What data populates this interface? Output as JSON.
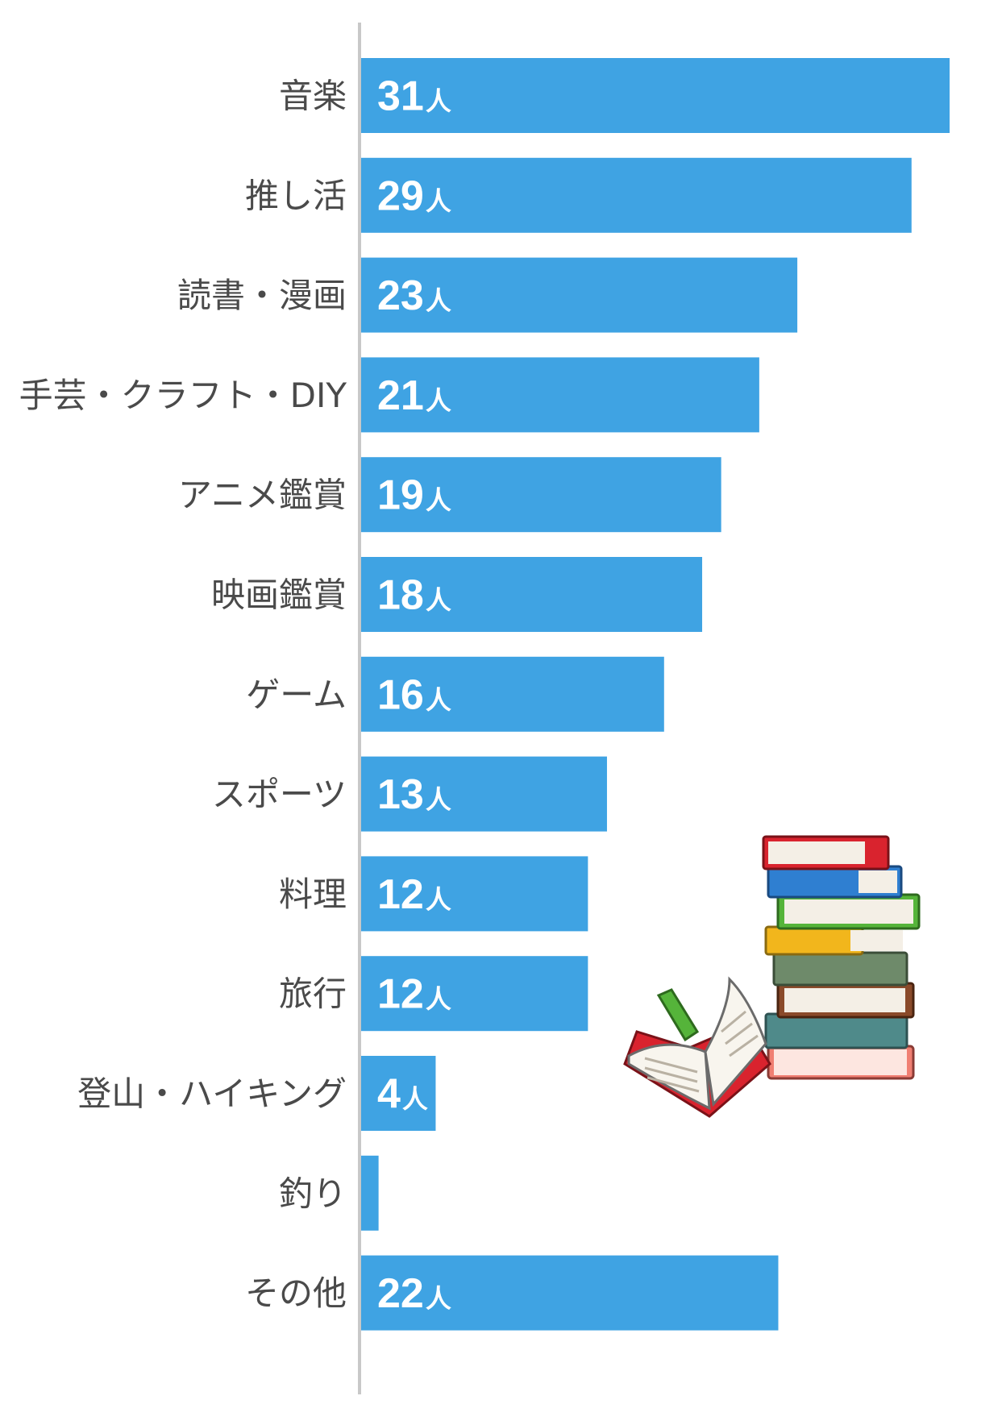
{
  "chart_data": {
    "type": "bar",
    "orientation": "horizontal",
    "categories": [
      "音楽",
      "推し活",
      "読書・漫画",
      "手芸・クラフト・DIY",
      "アニメ鑑賞",
      "映画鑑賞",
      "ゲーム",
      "スポーツ",
      "料理",
      "旅行",
      "登山・ハイキング",
      "釣り",
      "その他"
    ],
    "values": [
      31,
      29,
      23,
      21,
      19,
      18,
      16,
      13,
      12,
      12,
      4,
      1,
      22
    ],
    "value_unit": "人",
    "xlim": [
      0,
      31
    ],
    "grid": false,
    "legend": "none",
    "bar_color": "#3fa3e3",
    "axis_color": "#c8c8c8"
  },
  "illustration": {
    "icon": "stack-of-books-with-open-book-icon",
    "colors": [
      "#d9232e",
      "#2f7fd1",
      "#55b43a",
      "#f2b61c",
      "#6e8a6a",
      "#8a4a2a",
      "#f07f72"
    ]
  }
}
